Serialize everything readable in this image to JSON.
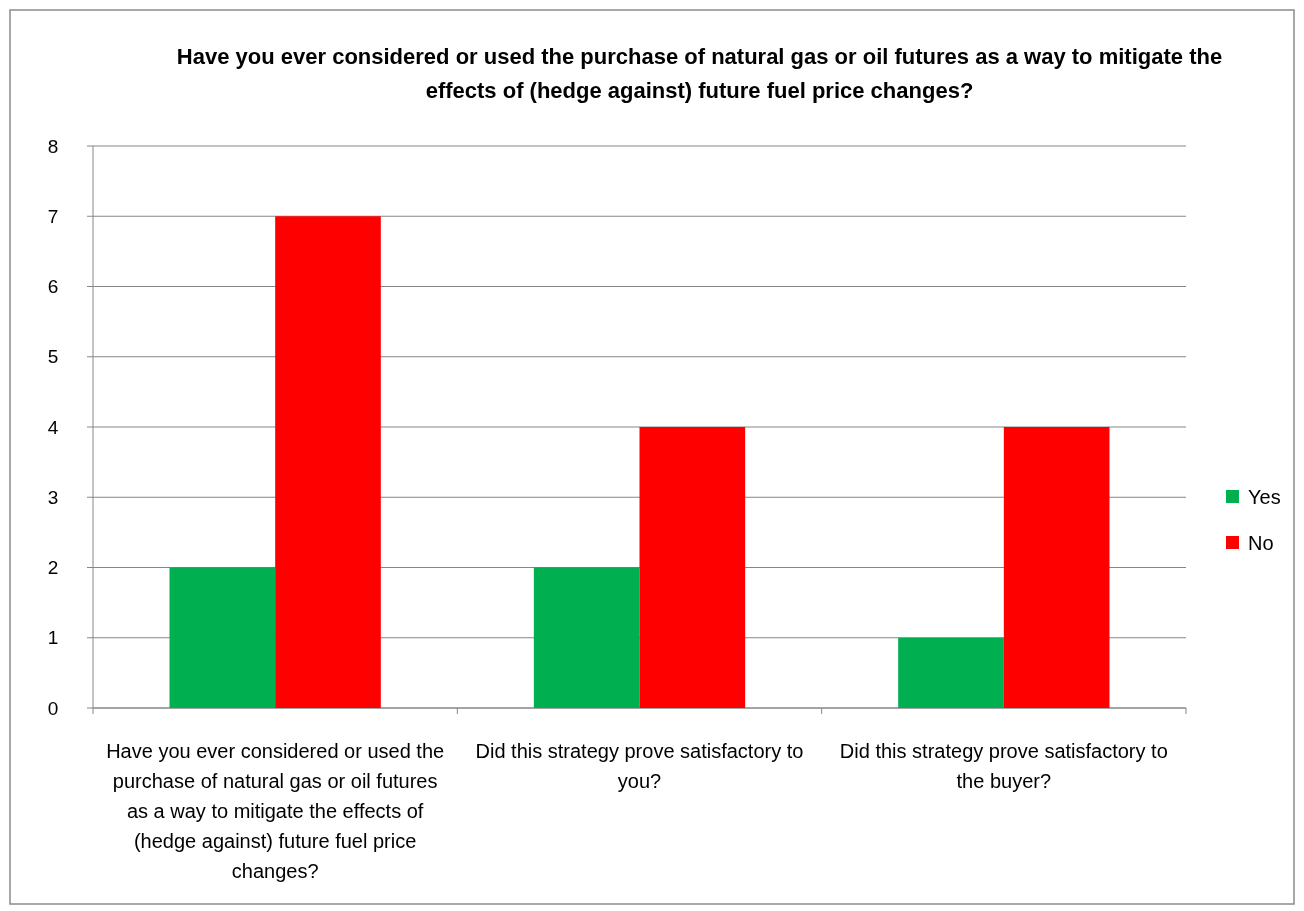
{
  "chart_data": {
    "type": "bar",
    "title": "Have you ever considered or used the purchase of natural gas or oil futures as a way to mitigate the effects of (hedge against) future fuel price changes?",
    "categories": [
      "Have you ever considered or used the purchase of natural gas or oil futures as a way to mitigate the effects of (hedge against) future fuel price changes?",
      "Did this strategy prove satisfactory to you?",
      "Did this strategy prove satisfactory to the buyer?"
    ],
    "series": [
      {
        "name": "Yes",
        "color": "#00b050",
        "values": [
          2,
          2,
          1
        ]
      },
      {
        "name": "No",
        "color": "#ff0000",
        "values": [
          7,
          4,
          4
        ]
      }
    ],
    "ylim": [
      0,
      8
    ],
    "yticks": [
      0,
      1,
      2,
      3,
      4,
      5,
      6,
      7,
      8
    ],
    "grid": "y",
    "legend": "right"
  }
}
